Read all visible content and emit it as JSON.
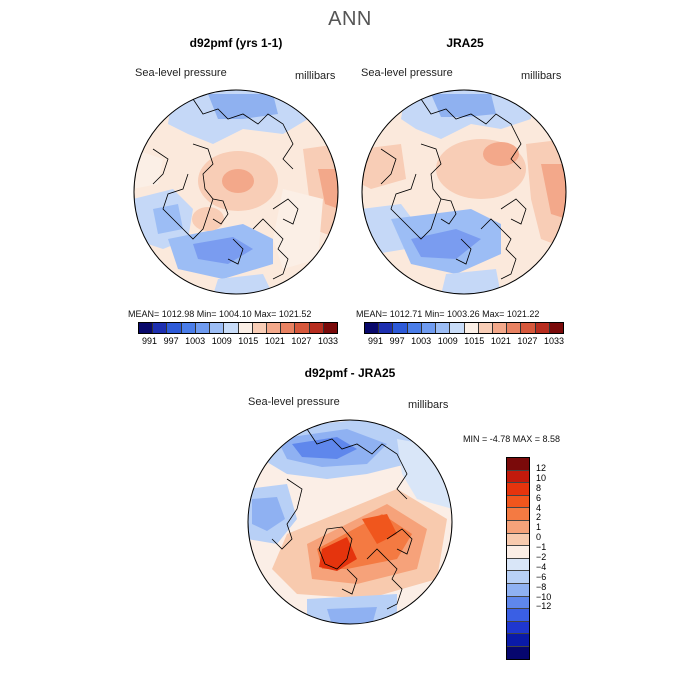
{
  "title": "ANN",
  "panels": {
    "model": {
      "title": "d92pmf (yrs 1-1)",
      "variable": "Sea-level pressure",
      "units": "millibars",
      "stats": "MEAN= 1012.98   Min= 1004.10   Max= 1021.52",
      "mean": 1012.98,
      "min": 1004.1,
      "max": 1021.52
    },
    "obs": {
      "title": "JRA25",
      "variable": "Sea-level pressure",
      "units": "millibars",
      "stats": "MEAN= 1012.71   Min= 1003.26   Max= 1021.22",
      "mean": 1012.71,
      "min": 1003.26,
      "max": 1021.22
    },
    "diff": {
      "title": "d92pmf - JRA25",
      "variable": "Sea-level pressure",
      "units": "millibars",
      "stats": "MIN =   -4.78  MAX =    8.58",
      "min": -4.78,
      "max": 8.58
    }
  },
  "colorbar_abs": {
    "colors": [
      "#08086b",
      "#1d2fb0",
      "#2d5ad8",
      "#4a7de9",
      "#6f9bf0",
      "#9cbdf5",
      "#c8dcf8",
      "#fbefe6",
      "#f8cdb6",
      "#f3a88a",
      "#e88262",
      "#d6583c",
      "#b72d1f",
      "#7a0a0a"
    ],
    "tick_labels": [
      "991",
      "997",
      "1003",
      "1009",
      "1015",
      "1021",
      "1027",
      "1033"
    ]
  },
  "colorbar_diff": {
    "colors": [
      "#7a0a0a",
      "#c21a0c",
      "#e5340d",
      "#f0561d",
      "#f47a42",
      "#f6a27a",
      "#f8caae",
      "#fbeee6",
      "#d9e6f8",
      "#b8d0f6",
      "#8fb1f2",
      "#5f87ec",
      "#3a5fe4",
      "#1f37cf",
      "#0a1aa8",
      "#06066e"
    ],
    "tick_labels": [
      "12",
      "10",
      "8",
      "6",
      "4",
      "2",
      "1",
      "0",
      "−1",
      "−2",
      "−4",
      "−6",
      "−8",
      "−10",
      "−12"
    ]
  }
}
